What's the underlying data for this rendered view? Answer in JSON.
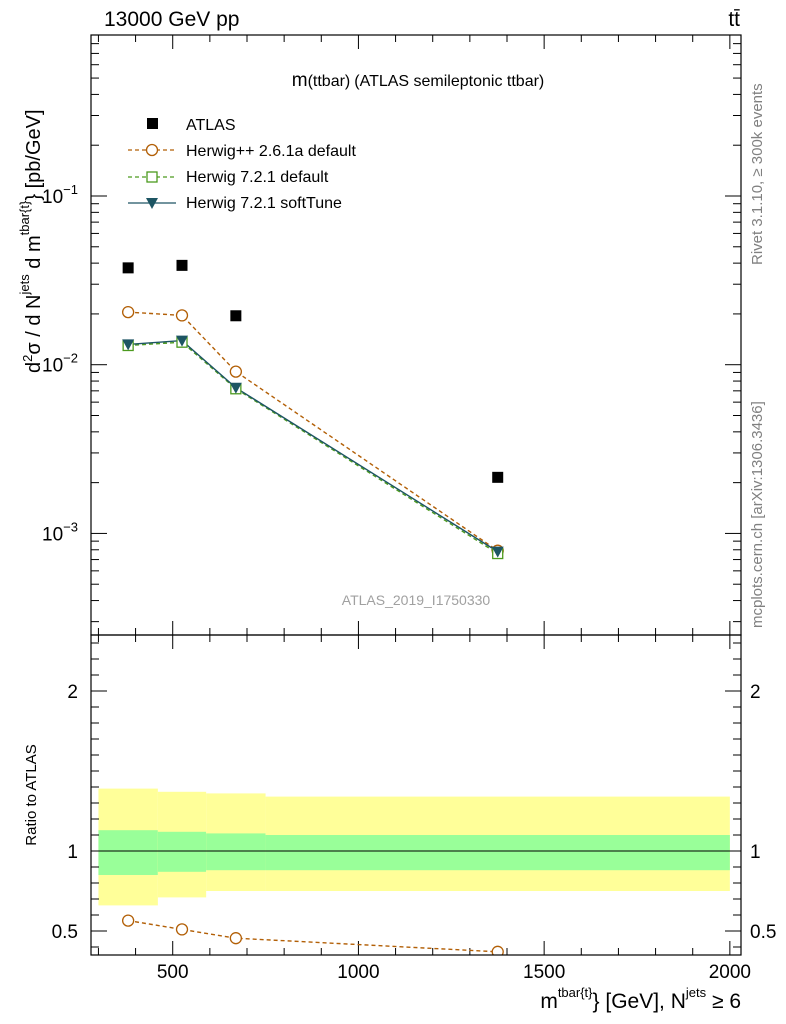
{
  "header": {
    "energy_label": "13000 GeV pp",
    "process_label": "tt̄"
  },
  "side_labels": {
    "rivet": "Rivet 3.1.10, ≥ 300k events",
    "mcplots": "mcplots.cern.ch [arXiv:1306.3436]"
  },
  "chart_data": [
    {
      "type": "scatter",
      "title": "m(ttbar) (ATLAS semileptonic ttbar)",
      "title_main": "m",
      "title_paren": "(ttbar)",
      "title_rest": "(ATLAS semileptonic ttbar)",
      "analysis_label": "ATLAS_2019_I1750330",
      "y_scale": "log",
      "ylim": [
        0.00025,
        0.9
      ],
      "xlim": [
        280,
        2030
      ],
      "ylabel": "d²σ / d N^jets d m^tbar{t} [pb/GeV]",
      "ylabel_parts": {
        "d": "d",
        "two": "2",
        "sigma": "σ / d N",
        "jets": "jets",
        "dm": " d m",
        "tbart": "tbar{t}",
        "unit": "} [pb/GeV]"
      },
      "y_ticks": [
        {
          "value": 0.001,
          "base": "10",
          "exp": "−3"
        },
        {
          "value": 0.01,
          "base": "10",
          "exp": "−2"
        },
        {
          "value": 0.1,
          "base": "10",
          "exp": "−1"
        }
      ],
      "legend_position": "top-left",
      "series": [
        {
          "name": "ATLAS",
          "style": "data",
          "color": "#000000",
          "x": [
            380,
            525,
            670,
            1375
          ],
          "y": [
            0.0375,
            0.0388,
            0.0195,
            0.00215
          ]
        },
        {
          "name": "Herwig++ 2.6.1a default",
          "style": "dashed-circle",
          "color": "#b25f06",
          "x": [
            380,
            525,
            670,
            1375
          ],
          "y": [
            0.0205,
            0.0196,
            0.0091,
            0.00079
          ]
        },
        {
          "name": "Herwig 7.2.1 default",
          "style": "dashed-square",
          "color": "#4c9a1e",
          "x": [
            380,
            525,
            670,
            1375
          ],
          "y": [
            0.013,
            0.0136,
            0.0072,
            0.00076
          ]
        },
        {
          "name": "Herwig 7.2.1 softTune",
          "style": "solid-triangle",
          "color": "#1d5563",
          "x": [
            380,
            525,
            670,
            1375
          ],
          "y": [
            0.0132,
            0.0139,
            0.0073,
            0.00078
          ]
        }
      ]
    },
    {
      "type": "line",
      "ylabel": "Ratio to ATLAS",
      "xlabel": "m^tbar{t}} [GeV], N^jets ≥ 6",
      "xlabel_parts": {
        "m": "m",
        "tbart": "tbar{t}",
        "gev": "} [GeV], N",
        "jets": "jets",
        "ge6": " ≥ 6"
      },
      "xlim": [
        280,
        2030
      ],
      "ylim": [
        0.35,
        2.35
      ],
      "x_ticks": [
        500,
        1000,
        1500,
        2000
      ],
      "x_tick_labels": [
        "500",
        "1000",
        "1500",
        "2000"
      ],
      "y_ticks": [
        0.5,
        1,
        2
      ],
      "y_tick_labels": [
        "0.5",
        "1",
        "2"
      ],
      "bands": [
        {
          "x0": 300,
          "x1": 460,
          "stat_lo": 0.85,
          "stat_hi": 1.13,
          "tot_lo": 0.66,
          "tot_hi": 1.39
        },
        {
          "x0": 460,
          "x1": 590,
          "stat_lo": 0.87,
          "stat_hi": 1.12,
          "tot_lo": 0.71,
          "tot_hi": 1.37
        },
        {
          "x0": 590,
          "x1": 750,
          "stat_lo": 0.88,
          "stat_hi": 1.11,
          "tot_lo": 0.75,
          "tot_hi": 1.36
        },
        {
          "x0": 750,
          "x1": 2000,
          "stat_lo": 0.88,
          "stat_hi": 1.1,
          "tot_lo": 0.75,
          "tot_hi": 1.34
        }
      ],
      "series": [
        {
          "name": "Herwig++ 2.6.1a default / ATLAS",
          "color": "#b25f06",
          "x": [
            380,
            525,
            670,
            1375
          ],
          "y": [
            0.565,
            0.51,
            0.455,
            0.37
          ]
        }
      ]
    }
  ]
}
